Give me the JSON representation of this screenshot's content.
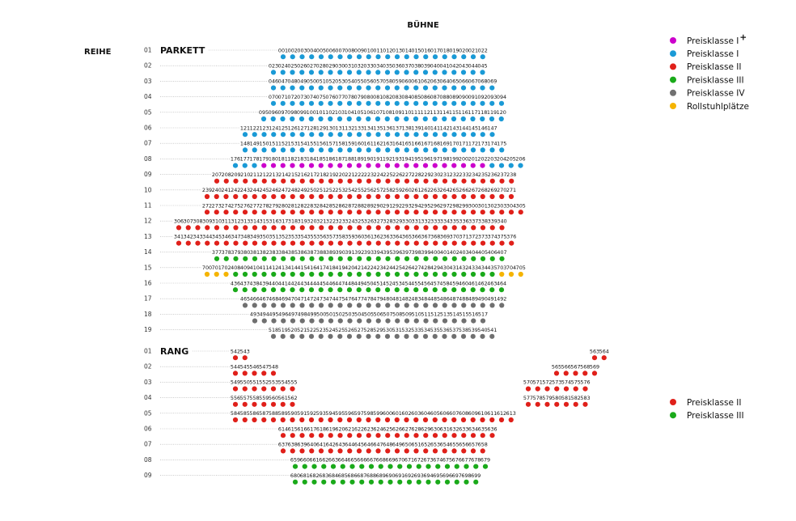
{
  "stage_label": "BÜHNE",
  "row_header": "REIHE",
  "colors": {
    "P1+": "#cc00cc",
    "P1": "#1a9ad6",
    "P2": "#e0201a",
    "P3": "#1aaa1a",
    "P4": "#707070",
    "RS": "#f5b400"
  },
  "legend_top": [
    {
      "key": "P1+",
      "label": "Preisklasse I",
      "sup": "+"
    },
    {
      "key": "P1",
      "label": "Preisklasse I",
      "sup": ""
    },
    {
      "key": "P2",
      "label": "Preisklasse II",
      "sup": ""
    },
    {
      "key": "P3",
      "label": "Preisklasse III",
      "sup": ""
    },
    {
      "key": "P4",
      "label": "Preisklasse IV",
      "sup": ""
    },
    {
      "key": "RS",
      "label": "Rollstuhlplätze",
      "sup": ""
    }
  ],
  "legend_rang": [
    {
      "key": "P2",
      "label": "Preisklasse II"
    },
    {
      "key": "P3",
      "label": "Preisklasse III"
    }
  ],
  "parkett": {
    "label": "PARKETT",
    "rows": [
      {
        "row": "01",
        "groups": [
          {
            "seats": [
              [
                1,
                22,
                "P1"
              ]
            ]
          }
        ]
      },
      {
        "row": "02",
        "groups": [
          {
            "seats": [
              [
                23,
                45,
                "P1"
              ]
            ]
          }
        ]
      },
      {
        "row": "03",
        "groups": [
          {
            "seats": [
              [
                46,
                69,
                "P1"
              ]
            ]
          }
        ]
      },
      {
        "row": "04",
        "groups": [
          {
            "seats": [
              [
                70,
                94,
                "P1"
              ]
            ]
          }
        ]
      },
      {
        "row": "05",
        "groups": [
          {
            "seats": [
              [
                95,
                120,
                "P1"
              ]
            ]
          }
        ]
      },
      {
        "row": "06",
        "groups": [
          {
            "seats": [
              [
                121,
                147,
                "P1"
              ]
            ]
          }
        ]
      },
      {
        "row": "07",
        "groups": [
          {
            "seats": [
              [
                148,
                175,
                "P1"
              ]
            ]
          }
        ]
      },
      {
        "row": "08",
        "groups": [
          {
            "seats": [
              [
                176,
                178,
                "P1"
              ],
              [
                179,
                202,
                "P1+"
              ],
              [
                203,
                206,
                "P1"
              ]
            ]
          }
        ]
      },
      {
        "row": "09",
        "groups": [
          {
            "seats": [
              [
                207,
                238,
                "P2"
              ]
            ]
          }
        ]
      },
      {
        "row": "10",
        "groups": [
          {
            "seats": [
              [
                239,
                271,
                "P2"
              ]
            ]
          }
        ]
      },
      {
        "row": "11",
        "groups": [
          {
            "seats": [
              [
                272,
                305,
                "P2"
              ]
            ]
          }
        ]
      },
      {
        "row": "12",
        "groups": [
          {
            "seats": [
              [
                306,
                340,
                "P2"
              ]
            ]
          }
        ]
      },
      {
        "row": "13",
        "groups": [
          {
            "seats": [
              [
                341,
                376,
                "P2"
              ]
            ]
          }
        ]
      },
      {
        "row": "14",
        "groups": [
          {
            "seats": [
              [
                377,
                407,
                "P3"
              ]
            ]
          }
        ]
      },
      {
        "row": "15",
        "groups": [
          {
            "seats": [
              [
                700,
                702,
                "RS"
              ],
              [
                408,
                435,
                "P3"
              ],
              [
                703,
                705,
                "RS"
              ]
            ]
          }
        ]
      },
      {
        "row": "16",
        "groups": [
          {
            "seats": [
              [
                436,
                464,
                "P3"
              ]
            ]
          }
        ]
      },
      {
        "row": "17",
        "groups": [
          {
            "seats": [
              [
                465,
                492,
                "P4"
              ]
            ]
          }
        ]
      },
      {
        "row": "18",
        "groups": [
          {
            "seats": [
              [
                493,
                517,
                "P4"
              ]
            ]
          }
        ]
      },
      {
        "row": "19",
        "groups": [
          {
            "seats": [
              [
                518,
                541,
                "P4"
              ]
            ]
          }
        ]
      }
    ]
  },
  "rang": {
    "label": "RANG",
    "rows": [
      {
        "row": "01",
        "groups": [
          {
            "seats": [
              [
                542,
                543,
                "P2"
              ]
            ]
          },
          {
            "seats": [
              [
                563,
                564,
                "P2"
              ]
            ]
          }
        ]
      },
      {
        "row": "02",
        "groups": [
          {
            "seats": [
              [
                544,
                548,
                "P2"
              ]
            ]
          },
          {
            "seats": [
              [
                565,
                569,
                "P2"
              ]
            ]
          }
        ]
      },
      {
        "row": "03",
        "groups": [
          {
            "seats": [
              [
                549,
                555,
                "P2"
              ]
            ]
          },
          {
            "seats": [
              [
                570,
                576,
                "P2"
              ]
            ]
          }
        ]
      },
      {
        "row": "04",
        "groups": [
          {
            "seats": [
              [
                556,
                562,
                "P2"
              ]
            ]
          },
          {
            "seats": [
              [
                577,
                583,
                "P2"
              ]
            ]
          }
        ]
      },
      {
        "row": "05",
        "groups": [
          {
            "seats": [
              [
                584,
                613,
                "P2"
              ]
            ]
          }
        ]
      },
      {
        "row": "06",
        "groups": [
          {
            "seats": [
              [
                614,
                636,
                "P2"
              ]
            ]
          }
        ]
      },
      {
        "row": "07",
        "groups": [
          {
            "seats": [
              [
                637,
                658,
                "P2"
              ]
            ]
          }
        ]
      },
      {
        "row": "08",
        "groups": [
          {
            "seats": [
              [
                659,
                679,
                "P3"
              ]
            ]
          }
        ]
      },
      {
        "row": "09",
        "groups": [
          {
            "seats": [
              [
                680,
                699,
                "P3"
              ]
            ]
          }
        ]
      }
    ]
  }
}
